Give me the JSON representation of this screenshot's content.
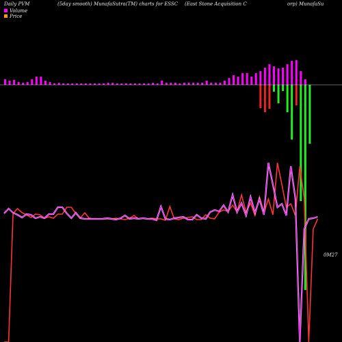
{
  "header": {
    "left": "Daily PVM",
    "mid": "(5day smooth) MunafaSutra(TM) charts for ESSC",
    "right1": "(East Stone   Acquisition   C",
    "right2": "orp) MunafaSu"
  },
  "legend": {
    "volume_label": "Volume",
    "price_label": "Price",
    "volume_color": "#ff00ff",
    "price_color": "#ff9900"
  },
  "last_value_label": "0M27",
  "colors": {
    "background": "#000000",
    "up": "#22ee22",
    "down": "#ee2222",
    "pvm": "#ff00ff",
    "baseline": "#ffffff",
    "price": "#ff3333"
  },
  "chart_data": {
    "type": "bar",
    "title": "",
    "xlabel": "",
    "ylabel": "",
    "grid": false,
    "bars_up": [
      {
        "i": 0,
        "v": 8
      },
      {
        "i": 1,
        "v": 6
      },
      {
        "i": 2,
        "v": 7
      },
      {
        "i": 3,
        "v": 4
      },
      {
        "i": 4,
        "v": 3
      },
      {
        "i": 5,
        "v": 4
      },
      {
        "i": 6,
        "v": 8
      },
      {
        "i": 7,
        "v": 12
      },
      {
        "i": 8,
        "v": 12
      },
      {
        "i": 9,
        "v": 6
      },
      {
        "i": 10,
        "v": 4
      },
      {
        "i": 11,
        "v": 2
      },
      {
        "i": 12,
        "v": 3
      },
      {
        "i": 13,
        "v": 2
      },
      {
        "i": 14,
        "v": 2
      },
      {
        "i": 15,
        "v": 2
      },
      {
        "i": 16,
        "v": 2
      },
      {
        "i": 17,
        "v": 2
      },
      {
        "i": 18,
        "v": 2
      },
      {
        "i": 19,
        "v": 2
      },
      {
        "i": 20,
        "v": 2
      },
      {
        "i": 21,
        "v": 2
      },
      {
        "i": 22,
        "v": 2
      },
      {
        "i": 23,
        "v": 3
      },
      {
        "i": 24,
        "v": 3
      },
      {
        "i": 25,
        "v": 2
      },
      {
        "i": 26,
        "v": 2
      },
      {
        "i": 27,
        "v": 2
      },
      {
        "i": 28,
        "v": 2
      },
      {
        "i": 29,
        "v": 2
      },
      {
        "i": 30,
        "v": 2
      },
      {
        "i": 31,
        "v": 2
      },
      {
        "i": 32,
        "v": 2
      },
      {
        "i": 33,
        "v": 3
      },
      {
        "i": 34,
        "v": 2
      },
      {
        "i": 35,
        "v": 6
      },
      {
        "i": 36,
        "v": 3
      },
      {
        "i": 37,
        "v": 3
      },
      {
        "i": 38,
        "v": 3
      },
      {
        "i": 39,
        "v": 2
      },
      {
        "i": 40,
        "v": 3
      },
      {
        "i": 41,
        "v": 3
      },
      {
        "i": 42,
        "v": 3
      },
      {
        "i": 43,
        "v": 3
      },
      {
        "i": 44,
        "v": 3
      },
      {
        "i": 45,
        "v": 6
      },
      {
        "i": 46,
        "v": 3
      },
      {
        "i": 47,
        "v": 3
      },
      {
        "i": 48,
        "v": 3
      },
      {
        "i": 49,
        "v": 6
      },
      {
        "i": 50,
        "v": 10
      },
      {
        "i": 51,
        "v": 14
      },
      {
        "i": 52,
        "v": 12
      },
      {
        "i": 53,
        "v": 17
      },
      {
        "i": 54,
        "v": 17
      },
      {
        "i": 55,
        "v": 12
      },
      {
        "i": 56,
        "v": 17
      },
      {
        "i": 57,
        "v": 20
      },
      {
        "i": 58,
        "v": 25
      },
      {
        "i": 59,
        "v": 30
      },
      {
        "i": 60,
        "v": 27
      },
      {
        "i": 61,
        "v": 24
      },
      {
        "i": 62,
        "v": 25
      },
      {
        "i": 63,
        "v": 30
      },
      {
        "i": 64,
        "v": 35
      },
      {
        "i": 65,
        "v": 36
      },
      {
        "i": 66,
        "v": 20
      },
      {
        "i": 67,
        "v": 8
      }
    ],
    "bars_down": [
      {
        "i": 57,
        "c": "down",
        "v": 34
      },
      {
        "i": 58,
        "c": "down",
        "v": 40
      },
      {
        "i": 59,
        "c": "down",
        "v": 35
      },
      {
        "i": 60,
        "c": "up",
        "v": 10
      },
      {
        "i": 61,
        "c": "up",
        "v": 27
      },
      {
        "i": 62,
        "c": "up",
        "v": 9
      },
      {
        "i": 63,
        "c": "up",
        "v": 40
      },
      {
        "i": 64,
        "c": "up",
        "v": 80
      },
      {
        "i": 65,
        "c": "down",
        "v": 30
      },
      {
        "i": 66,
        "c": "up",
        "v": 170
      },
      {
        "i": 67,
        "c": "up",
        "v": 300
      },
      {
        "i": 68,
        "c": "up",
        "v": 86
      }
    ],
    "pvm_line": [
      [
        0,
        63
      ],
      [
        1,
        70
      ],
      [
        2,
        64
      ],
      [
        3,
        61
      ],
      [
        4,
        57
      ],
      [
        5,
        62
      ],
      [
        6,
        61
      ],
      [
        7,
        56
      ],
      [
        8,
        58
      ],
      [
        9,
        56
      ],
      [
        10,
        62
      ],
      [
        11,
        62
      ],
      [
        12,
        72
      ],
      [
        13,
        72
      ],
      [
        14,
        63
      ],
      [
        15,
        56
      ],
      [
        16,
        64
      ],
      [
        17,
        56
      ],
      [
        18,
        55
      ],
      [
        19,
        55
      ],
      [
        20,
        55
      ],
      [
        21,
        55
      ],
      [
        22,
        55
      ],
      [
        23,
        56
      ],
      [
        24,
        55
      ],
      [
        25,
        54
      ],
      [
        26,
        56
      ],
      [
        27,
        60
      ],
      [
        28,
        55
      ],
      [
        29,
        56
      ],
      [
        30,
        55
      ],
      [
        31,
        56
      ],
      [
        32,
        55
      ],
      [
        33,
        55
      ],
      [
        34,
        53
      ],
      [
        35,
        73
      ],
      [
        36,
        55
      ],
      [
        37,
        54
      ],
      [
        38,
        56
      ],
      [
        39,
        57
      ],
      [
        40,
        58
      ],
      [
        41,
        54
      ],
      [
        42,
        54
      ],
      [
        43,
        61
      ],
      [
        44,
        56
      ],
      [
        45,
        55
      ],
      [
        46,
        65
      ],
      [
        47,
        68
      ],
      [
        48,
        66
      ],
      [
        49,
        75
      ],
      [
        50,
        65
      ],
      [
        51,
        90
      ],
      [
        52,
        65
      ],
      [
        53,
        78
      ],
      [
        54,
        60
      ],
      [
        55,
        87
      ],
      [
        56,
        64
      ],
      [
        57,
        84
      ],
      [
        58,
        61
      ],
      [
        59,
        137
      ],
      [
        60,
        105
      ],
      [
        61,
        72
      ],
      [
        62,
        77
      ],
      [
        63,
        60
      ],
      [
        64,
        132
      ],
      [
        65,
        85
      ],
      [
        66,
        -170
      ],
      [
        67,
        40
      ],
      [
        68,
        55
      ],
      [
        69,
        56
      ],
      [
        70,
        58
      ]
    ],
    "price_line": [
      [
        0,
        -170
      ],
      [
        1,
        -170
      ],
      [
        2,
        63
      ],
      [
        3,
        70
      ],
      [
        4,
        64
      ],
      [
        5,
        61
      ],
      [
        6,
        57
      ],
      [
        7,
        62
      ],
      [
        8,
        61
      ],
      [
        9,
        56
      ],
      [
        10,
        58
      ],
      [
        11,
        56
      ],
      [
        12,
        62
      ],
      [
        13,
        62
      ],
      [
        14,
        72
      ],
      [
        15,
        72
      ],
      [
        16,
        63
      ],
      [
        17,
        56
      ],
      [
        18,
        64
      ],
      [
        19,
        56
      ],
      [
        20,
        55
      ],
      [
        21,
        55
      ],
      [
        22,
        55
      ],
      [
        23,
        55
      ],
      [
        24,
        55
      ],
      [
        25,
        56
      ],
      [
        26,
        55
      ],
      [
        27,
        54
      ],
      [
        28,
        56
      ],
      [
        29,
        60
      ],
      [
        30,
        55
      ],
      [
        31,
        56
      ],
      [
        32,
        55
      ],
      [
        33,
        56
      ],
      [
        34,
        55
      ],
      [
        35,
        55
      ],
      [
        36,
        53
      ],
      [
        37,
        73
      ],
      [
        38,
        55
      ],
      [
        39,
        54
      ],
      [
        40,
        56
      ],
      [
        41,
        57
      ],
      [
        42,
        58
      ],
      [
        43,
        54
      ],
      [
        44,
        54
      ],
      [
        45,
        61
      ],
      [
        46,
        56
      ],
      [
        47,
        55
      ],
      [
        48,
        65
      ],
      [
        49,
        68
      ],
      [
        50,
        66
      ],
      [
        51,
        75
      ],
      [
        52,
        65
      ],
      [
        53,
        90
      ],
      [
        54,
        65
      ],
      [
        55,
        78
      ],
      [
        56,
        60
      ],
      [
        57,
        87
      ],
      [
        58,
        64
      ],
      [
        59,
        84
      ],
      [
        60,
        61
      ],
      [
        61,
        137
      ],
      [
        62,
        105
      ],
      [
        63,
        72
      ],
      [
        64,
        77
      ],
      [
        65,
        60
      ],
      [
        66,
        132
      ],
      [
        67,
        85
      ],
      [
        68,
        -170
      ],
      [
        69,
        40
      ],
      [
        70,
        55
      ]
    ]
  }
}
